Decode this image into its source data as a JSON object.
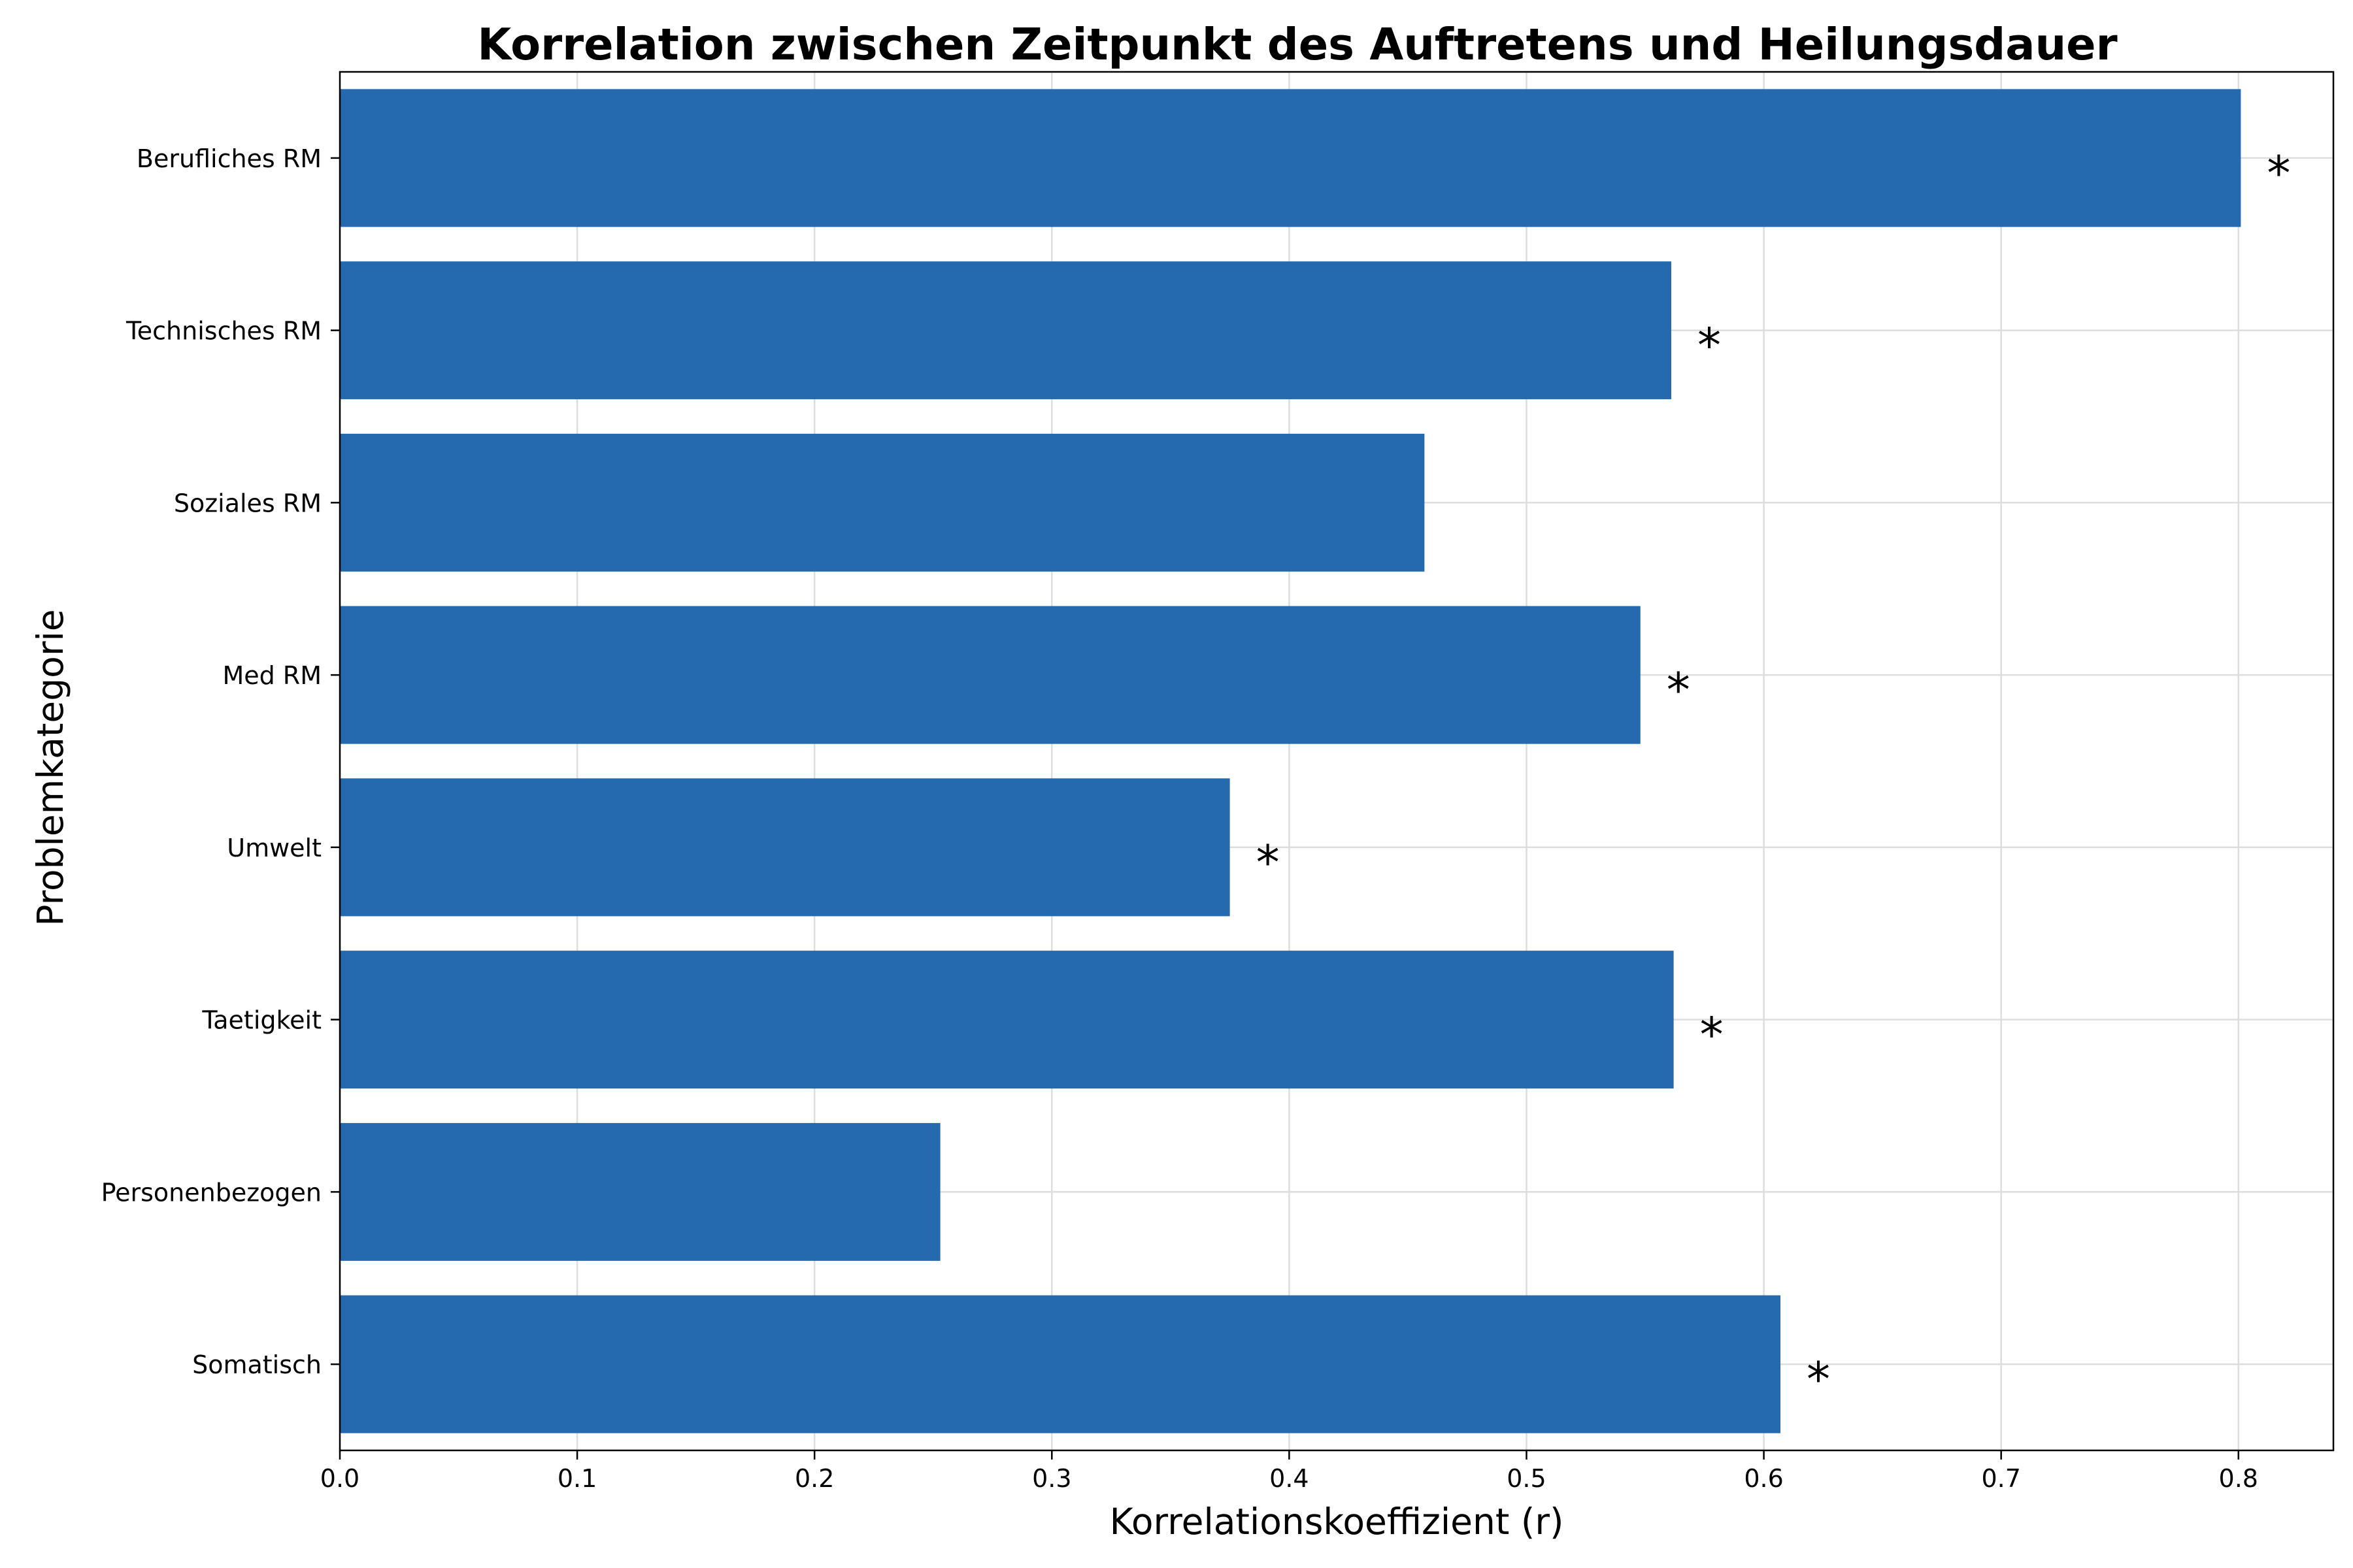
{
  "chart_data": {
    "type": "bar",
    "orientation": "horizontal",
    "title": "Korrelation zwischen Zeitpunkt des Auftretens und Heilungsdauer",
    "xlabel": "Korrelationskoeffizient (r)",
    "ylabel": "Problemkategorie",
    "categories": [
      "Somatisch",
      "Personenbezogen",
      "Taetigkeit",
      "Umwelt",
      "Med RM",
      "Soziales RM",
      "Technisches RM",
      "Berufliches RM"
    ],
    "values": [
      0.607,
      0.253,
      0.562,
      0.375,
      0.548,
      0.457,
      0.561,
      0.801
    ],
    "significant": [
      true,
      false,
      true,
      true,
      true,
      false,
      true,
      true
    ],
    "significance_marker": "*",
    "xlim": [
      0.0,
      0.84
    ],
    "xticks": [
      0.0,
      0.1,
      0.2,
      0.3,
      0.4,
      0.5,
      0.6,
      0.7,
      0.8
    ],
    "xtick_labels": [
      "0.0",
      "0.1",
      "0.2",
      "0.3",
      "0.4",
      "0.5",
      "0.6",
      "0.7",
      "0.8"
    ],
    "grid": true,
    "bar_color": "#2166ac",
    "legend": null
  }
}
